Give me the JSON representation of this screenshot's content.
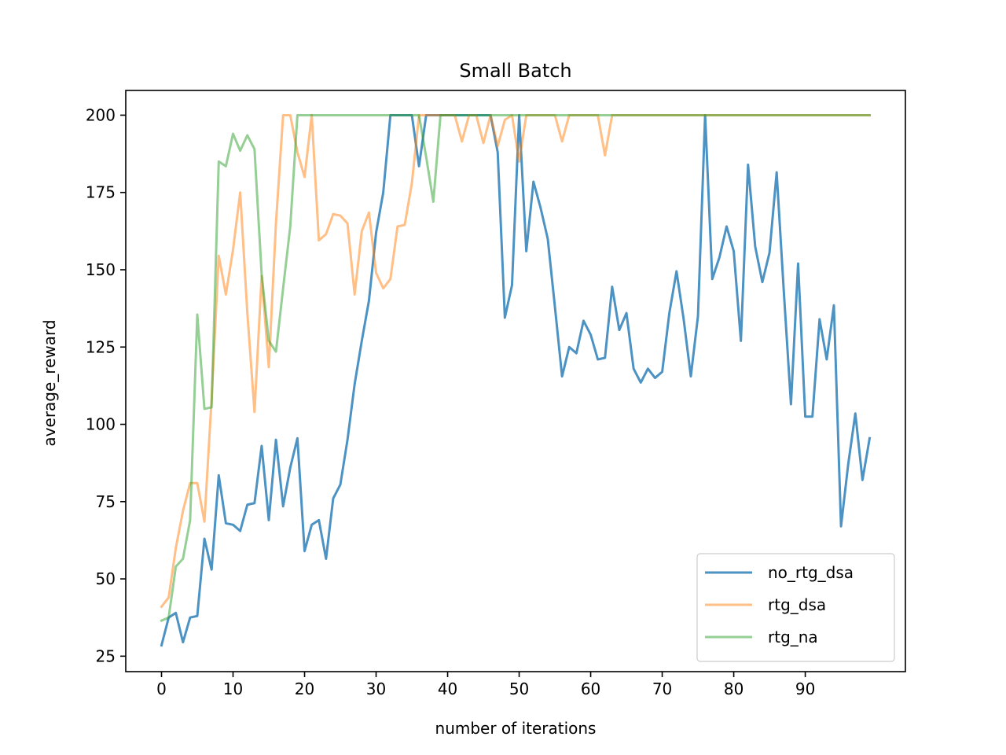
{
  "chart_data": {
    "type": "line",
    "title": "Small Batch",
    "xlabel": "number of iterations",
    "ylabel": "average_reward",
    "xlim": [
      -5,
      104
    ],
    "ylim": [
      20,
      208
    ],
    "xticks": [
      0,
      10,
      20,
      30,
      40,
      50,
      60,
      70,
      80,
      90
    ],
    "yticks": [
      25,
      50,
      75,
      100,
      125,
      150,
      175,
      200
    ],
    "grid": false,
    "legend_position": "bottom-right",
    "series": [
      {
        "name": "no_rtg_dsa",
        "color": "#1f77b4",
        "values": [
          28.5,
          37.5,
          39,
          29.5,
          37.5,
          38,
          63,
          53,
          83.5,
          68,
          67.5,
          65.5,
          74,
          74.5,
          93,
          69,
          95,
          73.5,
          86,
          95.5,
          59,
          67.5,
          69,
          56.5,
          76,
          80.5,
          95,
          113,
          127,
          140,
          162,
          175,
          200,
          200,
          200,
          200,
          183.5,
          200,
          200,
          200,
          200,
          200,
          200,
          200,
          200,
          200,
          200,
          188,
          134.5,
          145,
          200,
          156,
          178.5,
          170,
          160,
          138,
          115.5,
          125,
          123,
          133.5,
          129,
          121,
          121.5,
          144.5,
          130.5,
          136,
          118,
          113.5,
          118,
          115,
          117,
          136,
          149.5,
          134,
          115.5,
          135,
          200,
          147,
          154,
          164,
          156,
          127,
          184,
          157.5,
          146,
          155.5,
          181.5,
          143,
          106.5,
          152,
          102.5,
          102.5,
          134,
          121,
          138.5,
          67,
          87,
          103.5,
          82,
          95.5
        ]
      },
      {
        "name": "rtg_dsa",
        "color": "#ff7f0e",
        "values": [
          41,
          44,
          60,
          72,
          81,
          81,
          68.5,
          108,
          154.5,
          142,
          156.5,
          175,
          136,
          104,
          148,
          118.5,
          165,
          200,
          200,
          188,
          180,
          200,
          159.5,
          161.5,
          168,
          167.5,
          165,
          142,
          162.5,
          168.5,
          149,
          144,
          147,
          164,
          164.5,
          178,
          200,
          200,
          200,
          200,
          200,
          200,
          191.5,
          200,
          200,
          191,
          200,
          190,
          198.5,
          200,
          185,
          200,
          200,
          200,
          200,
          200,
          191.5,
          200,
          200,
          200,
          200,
          200,
          187,
          200,
          200,
          200,
          200,
          200,
          200,
          200,
          200,
          200,
          200,
          200,
          200,
          200,
          200,
          200,
          200,
          200,
          200,
          200,
          200,
          200,
          200,
          200,
          200,
          200,
          200,
          200,
          200,
          200,
          200,
          200,
          200,
          200,
          200,
          200,
          200,
          200
        ]
      },
      {
        "name": "rtg_na",
        "color": "#2ca02c",
        "values": [
          36.5,
          37.5,
          54,
          56.5,
          69,
          135.5,
          105,
          105.5,
          185,
          183.5,
          194,
          188.5,
          193.5,
          189,
          148.5,
          127,
          123.5,
          144,
          164,
          200,
          200,
          200,
          200,
          200,
          200,
          200,
          200,
          200,
          200,
          200,
          200,
          200,
          200,
          200,
          200,
          200,
          200,
          186.5,
          172,
          200,
          200,
          200,
          200,
          200,
          200,
          200,
          200,
          200,
          200,
          200,
          200,
          200,
          200,
          200,
          200,
          200,
          200,
          200,
          200,
          200,
          200,
          200,
          200,
          200,
          200,
          200,
          200,
          200,
          200,
          200,
          200,
          200,
          200,
          200,
          200,
          200,
          200,
          200,
          200,
          200,
          200,
          200,
          200,
          200,
          200,
          200,
          200,
          200,
          200,
          200,
          200,
          200,
          200,
          200,
          200,
          200,
          200,
          200,
          200,
          200
        ]
      }
    ]
  }
}
